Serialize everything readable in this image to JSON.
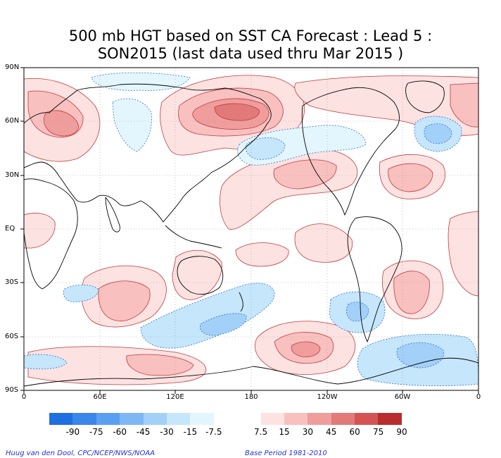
{
  "title": {
    "line1": "500 mb HGT based on SST CA Forecast : Lead 5 :",
    "line2": "SON2015 (last data used thru Mar 2015 )"
  },
  "axes": {
    "lat_labels": [
      "90N",
      "60N",
      "30N",
      "EQ",
      "30S",
      "60S",
      "90S"
    ],
    "lon_labels": [
      "0",
      "60E",
      "120E",
      "180",
      "120W",
      "60W",
      "0"
    ]
  },
  "legend": {
    "ticks": [
      "-90",
      "-75",
      "-60",
      "-45",
      "-30",
      "-15",
      "-7.5",
      "7.5",
      "15",
      "30",
      "45",
      "60",
      "75",
      "90"
    ],
    "colors": [
      "#1f6fe0",
      "#3a86ea",
      "#5a9ff0",
      "#7db8f5",
      "#a2d0f8",
      "#c5e6fb",
      "#e4f6fd",
      "#ffffff",
      "#fde2e2",
      "#f9c0c0",
      "#f09d9d",
      "#e27a7a",
      "#d45454",
      "#b82e2e"
    ]
  },
  "footer": {
    "credit": "Huug van den Dool, CPC/NCEP/NWS/NOAA",
    "base_period": "Base Period 1981-2010"
  }
}
